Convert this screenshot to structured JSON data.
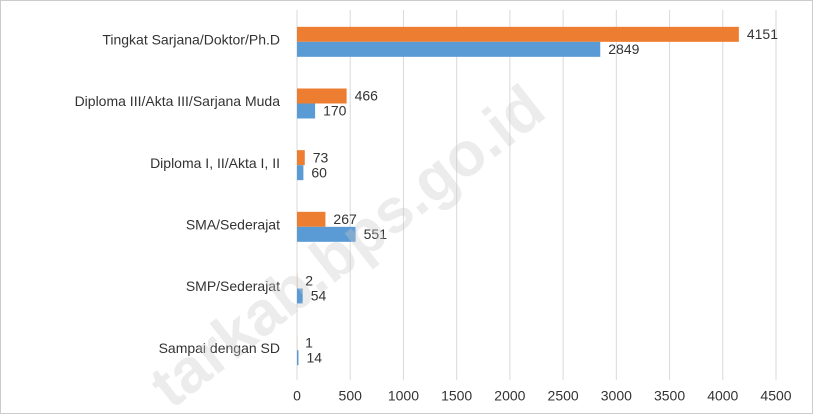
{
  "chart_data": {
    "type": "barh",
    "categories": [
      "Tingkat Sarjana/Doktor/Ph.D",
      "Diploma III/Akta III/Sarjana Muda",
      "Diploma I, II/Akta I, II",
      "SMA/Sederajat",
      "SMP/Sederajat",
      "Sampai dengan SD"
    ],
    "series": [
      {
        "color": "#ed7d31",
        "values": [
          4151,
          466,
          73,
          267,
          2,
          1
        ]
      },
      {
        "color": "#5b9bd5",
        "values": [
          2849,
          170,
          60,
          551,
          54,
          14
        ]
      }
    ],
    "xlim": [
      0,
      4500
    ],
    "xticks": [
      0,
      500,
      1000,
      1500,
      2000,
      2500,
      3000,
      3500,
      4000,
      4500
    ],
    "grid": true,
    "watermark": "tarkab.bps.go.id"
  }
}
